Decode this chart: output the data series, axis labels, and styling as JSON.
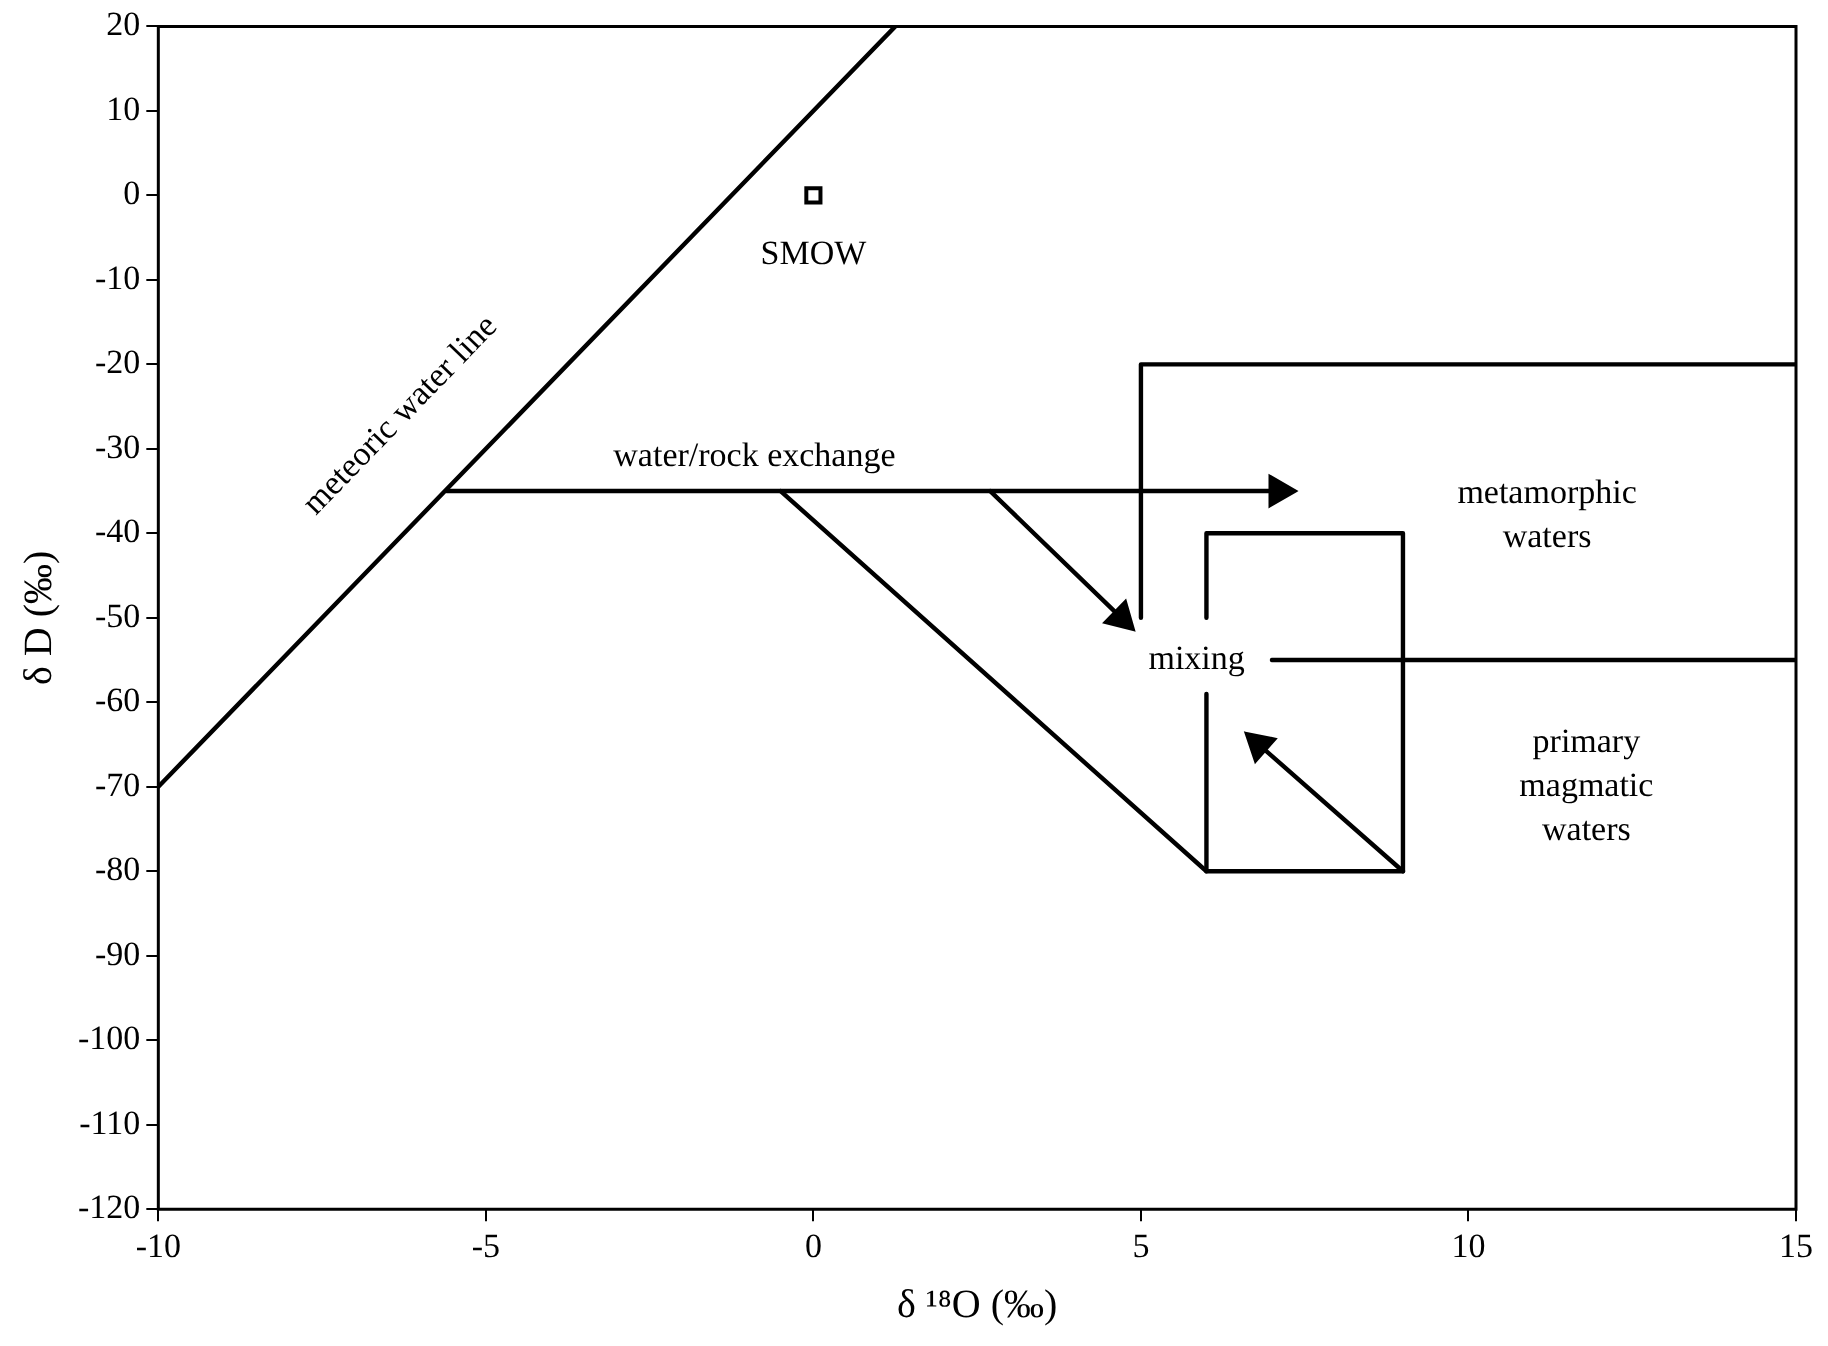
{
  "chart_data": {
    "type": "line",
    "xlabel": "δ ¹⁸O (‰)",
    "ylabel": "δ D (‰)",
    "xlim": [
      -10,
      15
    ],
    "xticks": [
      -10,
      -5,
      0,
      5,
      10,
      15
    ],
    "ylim": [
      -120,
      20
    ],
    "yticks": [
      -120,
      -110,
      -100,
      -90,
      -80,
      -70,
      -60,
      -50,
      -40,
      -30,
      -20,
      -10,
      0,
      10,
      20
    ],
    "grid": false,
    "legend": false,
    "marker": "none",
    "line_style": "solid",
    "series": [
      {
        "color": "#000000",
        "x": [
          -10,
          1.25
        ],
        "values": [
          -70,
          20
        ]
      },
      {
        "color": "#000000",
        "x": [
          -5.6,
          7.1
        ],
        "values": [
          -35,
          -35
        ],
        "marker": "triangle"
      },
      {
        "color": "#000000",
        "x": [
          -0.5,
          6,
          9,
          9,
          6,
          6
        ],
        "values": [
          -35,
          -80,
          -80,
          -40,
          -40,
          -50
        ]
      },
      {
        "color": "#000000",
        "x": [
          6,
          6
        ],
        "values": [
          -59,
          -80
        ]
      },
      {
        "color": "#000000",
        "x": [
          5,
          5,
          15
        ],
        "values": [
          -50,
          -20,
          -20
        ]
      },
      {
        "color": "#000000",
        "x": [
          7,
          15
        ],
        "values": [
          -55,
          -55
        ]
      },
      {
        "color": "#000000",
        "x": [
          2.7,
          4.7
        ],
        "values": [
          -35,
          -50
        ],
        "marker": "triangle"
      },
      {
        "color": "#000000",
        "x": [
          9,
          6.8
        ],
        "values": [
          -80,
          -65
        ],
        "marker": "triangle"
      },
      {
        "color": "#000000",
        "type": "scatter",
        "x": [
          0
        ],
        "values": [
          0
        ],
        "marker": "square"
      }
    ],
    "annotations": [
      "meteoric water line",
      "SMOW",
      "water/rock exchange",
      "metamorphic\nwaters",
      "mixing",
      "primary\nmagmatic\nwaters"
    ]
  }
}
